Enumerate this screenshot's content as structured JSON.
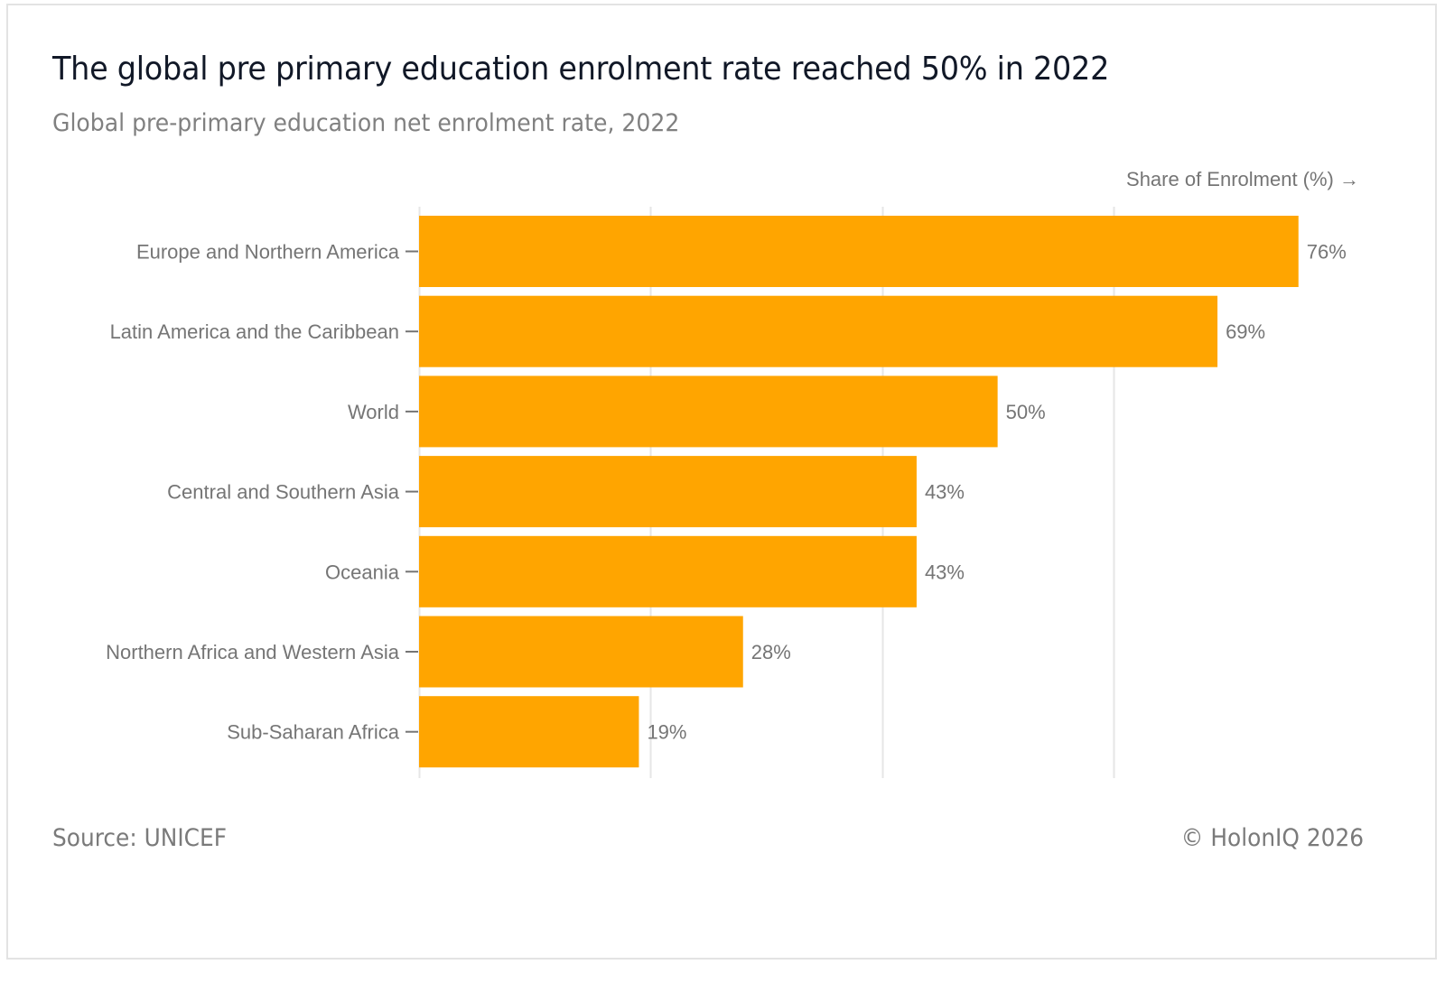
{
  "header": {
    "title": "The global pre primary education enrolment rate reached 50% in 2022",
    "subtitle": "Global pre-primary education net enrolment rate, 2022"
  },
  "footer": {
    "source": "Source: UNICEF",
    "copyright": "© HolonIQ 2026"
  },
  "colors": {
    "bar": "#FFA500",
    "text": "#757575",
    "grid": "#e6e6e6"
  },
  "chart_data": {
    "type": "bar",
    "orientation": "horizontal",
    "title": "The global pre primary education enrolment rate reached 50% in 2022",
    "subtitle": "Global pre-primary education net enrolment rate, 2022",
    "xlabel": "Share of Enrolment (%) →",
    "ylabel": "",
    "categories": [
      "Europe and Northern America",
      "Latin America and the Caribbean",
      "World",
      "Central and Southern Asia",
      "Oceania",
      "Northern Africa and Western Asia",
      "Sub-Saharan Africa"
    ],
    "values": [
      76,
      69,
      50,
      43,
      43,
      28,
      19
    ],
    "data_labels": [
      "76%",
      "69%",
      "50%",
      "43%",
      "43%",
      "28%",
      "19%"
    ],
    "xlim": [
      0,
      80
    ],
    "x_gridlines": [
      0,
      20,
      40,
      60
    ],
    "x_tick_labels_shown": false,
    "grid": true,
    "legend": "none"
  }
}
